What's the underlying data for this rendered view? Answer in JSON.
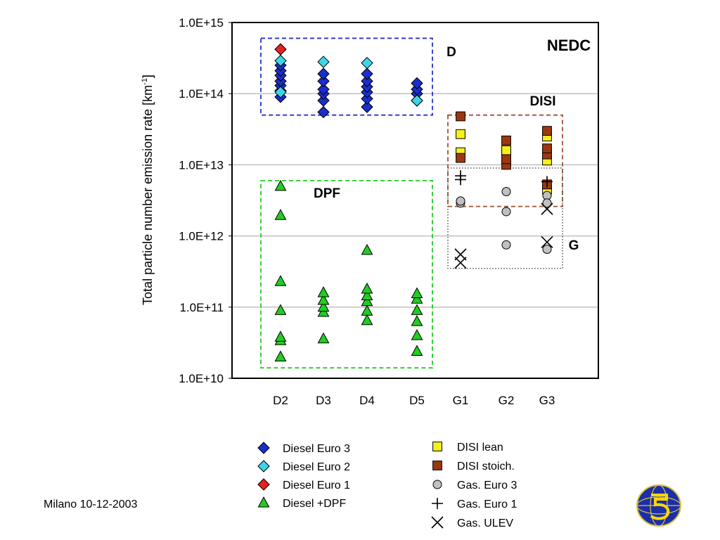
{
  "footer": {
    "date": "Milano 10-12-2003"
  },
  "chart_data": {
    "type": "scatter",
    "title": "NEDC",
    "ylabel": "Total particle number emission rate [km",
    "ylabel_sup": "-1",
    "ylabel_close": "]",
    "y_scale": "log",
    "ylim": [
      10000000000.0,
      1000000000000000.0
    ],
    "y_ticks": [
      {
        "value": 10000000000.0,
        "label": "1.0E+10"
      },
      {
        "value": 100000000000.0,
        "label": "1.0E+11"
      },
      {
        "value": 1000000000000.0,
        "label": "1.0E+12"
      },
      {
        "value": 10000000000000.0,
        "label": "1.0E+13"
      },
      {
        "value": 100000000000000.0,
        "label": "1.0E+14"
      },
      {
        "value": 1000000000000000.0,
        "label": "1.0E+15"
      }
    ],
    "grid": "horizontal",
    "categories": [
      "D2",
      "D3",
      "D4",
      "D5",
      "G1",
      "G2",
      "G3"
    ],
    "legend_position": "bottom",
    "regions": [
      {
        "label": "D",
        "color": "#2233cc",
        "style": "dashed",
        "x_from": "D2",
        "x_to": "D5",
        "y_range": [
          50000000000000.0,
          600000000000000.0
        ]
      },
      {
        "label": "DPF",
        "color": "#22cc22",
        "style": "dashed",
        "x_from": "D2",
        "x_to": "D5",
        "y_range": [
          14000000000.0,
          6000000000000.0
        ]
      },
      {
        "label": "DISI",
        "color": "#a05030",
        "style": "dashed",
        "x_from": "G1",
        "x_to": "G3",
        "y_range": [
          2600000000000.0,
          50000000000000.0
        ]
      },
      {
        "label": "G",
        "color": "#555555",
        "style": "dotted",
        "x_from": "G1",
        "x_to": "G3",
        "y_range": [
          350000000000.0,
          9000000000000.0
        ]
      }
    ],
    "series": [
      {
        "name": "Diesel Euro 3",
        "marker": "diamond",
        "color": "#1a2ecc",
        "points": [
          {
            "x": "D2",
            "y": 90000000000000.0
          },
          {
            "x": "D2",
            "y": 110000000000000.0
          },
          {
            "x": "D2",
            "y": 130000000000000.0
          },
          {
            "x": "D2",
            "y": 150000000000000.0
          },
          {
            "x": "D2",
            "y": 180000000000000.0
          },
          {
            "x": "D2",
            "y": 210000000000000.0
          },
          {
            "x": "D2",
            "y": 250000000000000.0
          },
          {
            "x": "D3",
            "y": 55000000000000.0
          },
          {
            "x": "D3",
            "y": 80000000000000.0
          },
          {
            "x": "D3",
            "y": 100000000000000.0
          },
          {
            "x": "D3",
            "y": 115000000000000.0
          },
          {
            "x": "D3",
            "y": 150000000000000.0
          },
          {
            "x": "D3",
            "y": 190000000000000.0
          },
          {
            "x": "D4",
            "y": 65000000000000.0
          },
          {
            "x": "D4",
            "y": 85000000000000.0
          },
          {
            "x": "D4",
            "y": 105000000000000.0
          },
          {
            "x": "D4",
            "y": 125000000000000.0
          },
          {
            "x": "D4",
            "y": 150000000000000.0
          },
          {
            "x": "D4",
            "y": 190000000000000.0
          },
          {
            "x": "D5",
            "y": 80000000000000.0
          },
          {
            "x": "D5",
            "y": 100000000000000.0
          },
          {
            "x": "D5",
            "y": 115000000000000.0
          },
          {
            "x": "D5",
            "y": 140000000000000.0
          }
        ]
      },
      {
        "name": "Diesel Euro 2",
        "marker": "diamond",
        "color": "#3cd6e6",
        "points": [
          {
            "x": "D2",
            "y": 105000000000000.0
          },
          {
            "x": "D2",
            "y": 290000000000000.0
          },
          {
            "x": "D3",
            "y": 280000000000000.0
          },
          {
            "x": "D4",
            "y": 270000000000000.0
          },
          {
            "x": "D5",
            "y": 80000000000000.0
          }
        ]
      },
      {
        "name": "Diesel Euro 1",
        "marker": "diamond",
        "color": "#e82020",
        "points": [
          {
            "x": "D2",
            "y": 420000000000000.0
          }
        ]
      },
      {
        "name": "Diesel +DPF",
        "marker": "triangle",
        "color": "#22cc22",
        "points": [
          {
            "x": "D2",
            "y": 20000000000.0
          },
          {
            "x": "D2",
            "y": 34000000000.0
          },
          {
            "x": "D2",
            "y": 38000000000.0
          },
          {
            "x": "D2",
            "y": 90000000000.0
          },
          {
            "x": "D2",
            "y": 230000000000.0
          },
          {
            "x": "D2",
            "y": 1950000000000.0
          },
          {
            "x": "D2",
            "y": 5000000000000.0
          },
          {
            "x": "D3",
            "y": 36000000000.0
          },
          {
            "x": "D3",
            "y": 85000000000.0
          },
          {
            "x": "D3",
            "y": 100000000000.0
          },
          {
            "x": "D3",
            "y": 125000000000.0
          },
          {
            "x": "D3",
            "y": 160000000000.0
          },
          {
            "x": "D4",
            "y": 65000000000.0
          },
          {
            "x": "D4",
            "y": 88000000000.0
          },
          {
            "x": "D4",
            "y": 120000000000.0
          },
          {
            "x": "D4",
            "y": 145000000000.0
          },
          {
            "x": "D4",
            "y": 180000000000.0
          },
          {
            "x": "D4",
            "y": 630000000000.0
          },
          {
            "x": "D5",
            "y": 24000000000.0
          },
          {
            "x": "D5",
            "y": 40000000000.0
          },
          {
            "x": "D5",
            "y": 63000000000.0
          },
          {
            "x": "D5",
            "y": 90000000000.0
          },
          {
            "x": "D5",
            "y": 130000000000.0
          },
          {
            "x": "D5",
            "y": 155000000000.0
          }
        ]
      },
      {
        "name": "DISI lean",
        "marker": "square",
        "color": "#f6ef1e",
        "points": [
          {
            "x": "G1",
            "y": 15000000000000.0
          },
          {
            "x": "G1",
            "y": 27000000000000.0
          },
          {
            "x": "G2",
            "y": 14000000000000.0
          },
          {
            "x": "G2",
            "y": 16000000000000.0
          },
          {
            "x": "G3",
            "y": 11500000000000.0
          },
          {
            "x": "G3",
            "y": 25000000000000.0
          },
          {
            "x": "G3",
            "y": 4500000000000.0
          }
        ]
      },
      {
        "name": "DISI stoich.",
        "marker": "square",
        "color": "#9c3810",
        "points": [
          {
            "x": "G1",
            "y": 48000000000000.0
          },
          {
            "x": "G1",
            "y": 12500000000000.0
          },
          {
            "x": "G2",
            "y": 10000000000000.0
          },
          {
            "x": "G2",
            "y": 12000000000000.0
          },
          {
            "x": "G2",
            "y": 22000000000000.0
          },
          {
            "x": "G3",
            "y": 14000000000000.0
          },
          {
            "x": "G3",
            "y": 17000000000000.0
          },
          {
            "x": "G3",
            "y": 30000000000000.0
          },
          {
            "x": "G3",
            "y": 5300000000000.0
          }
        ]
      },
      {
        "name": "Gas. Euro 3",
        "marker": "circle",
        "color": "#c0c0c0",
        "points": [
          {
            "x": "G1",
            "y": 2900000000000.0
          },
          {
            "x": "G1",
            "y": 3100000000000.0
          },
          {
            "x": "G2",
            "y": 4200000000000.0
          },
          {
            "x": "G2",
            "y": 2200000000000.0
          },
          {
            "x": "G2",
            "y": 750000000000.0
          },
          {
            "x": "G3",
            "y": 3700000000000.0
          },
          {
            "x": "G3",
            "y": 2900000000000.0
          },
          {
            "x": "G3",
            "y": 650000000000.0
          }
        ]
      },
      {
        "name": "Gas. Euro 1",
        "marker": "plus",
        "color": "#000000",
        "points": [
          {
            "x": "G1",
            "y": 6200000000000.0
          },
          {
            "x": "G1",
            "y": 7000000000000.0
          },
          {
            "x": "G3",
            "y": 5800000000000.0
          }
        ]
      },
      {
        "name": "Gas. ULEV",
        "marker": "x",
        "color": "#000000",
        "points": [
          {
            "x": "G1",
            "y": 420000000000.0
          },
          {
            "x": "G1",
            "y": 550000000000.0
          },
          {
            "x": "G3",
            "y": 2400000000000.0
          },
          {
            "x": "G3",
            "y": 820000000000.0
          }
        ]
      }
    ]
  }
}
